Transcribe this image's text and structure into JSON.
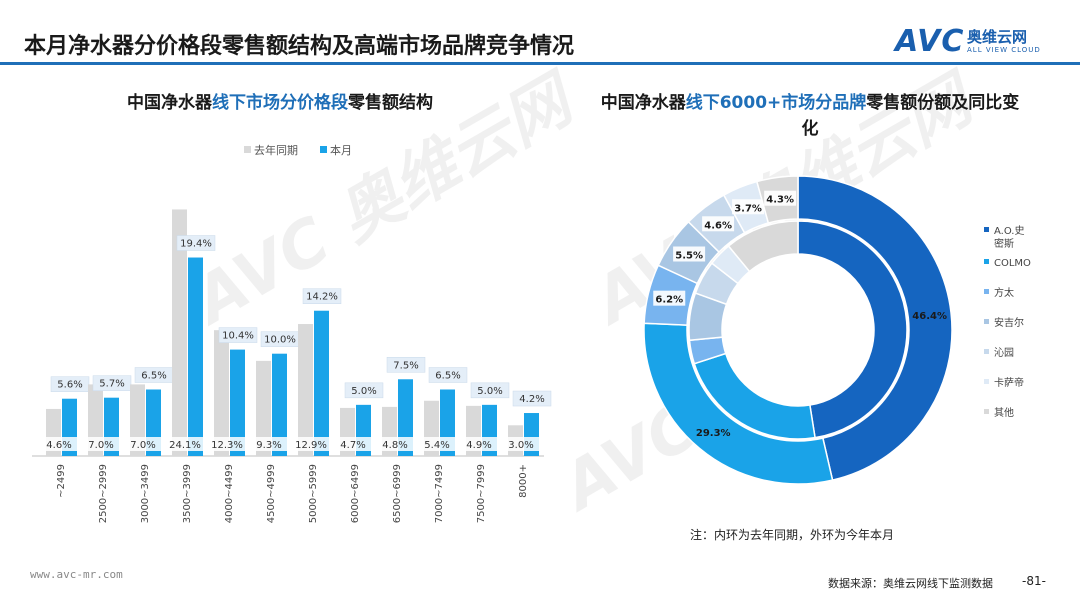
{
  "header": {
    "title": "本月净水器分价格段零售额结构及高端市场品牌竞争情况",
    "logo_mark": "AVC",
    "logo_cn": "奥维云网",
    "logo_en": "ALL VIEW CLOUD"
  },
  "left_title": {
    "pre": "中国净水器",
    "hl": "线下市场分价格段",
    "post": "零售额结构"
  },
  "right_title": {
    "pre": "中国净水器",
    "hl": "线下6000+市场分品牌",
    "post": "零售额份额及同比变化"
  },
  "colors": {
    "prior": "#d9d9d9",
    "current": "#1aa3e8",
    "title_accent": "#1f6fb8"
  },
  "chart_data": [
    {
      "type": "bar",
      "categories": [
        "~2499",
        "2500~2999",
        "3000~3499",
        "3500~3999",
        "4000~4499",
        "4500~4999",
        "5000~5999",
        "6000~6499",
        "6500~6999",
        "7000~7499",
        "7500~7999",
        "8000+"
      ],
      "series": [
        {
          "name": "去年同期",
          "values": [
            4.6,
            7.0,
            7.0,
            24.1,
            12.3,
            9.3,
            12.9,
            4.7,
            4.8,
            5.4,
            4.9,
            3.0
          ],
          "labels": [
            "4.6%",
            "7.0%",
            "7.0%",
            "24.1%",
            "12.3%",
            "9.3%",
            "12.9%",
            "4.7%",
            "4.8%",
            "5.4%",
            "4.9%",
            "3.0%"
          ]
        },
        {
          "name": "本月",
          "values": [
            5.6,
            5.7,
            6.5,
            19.4,
            10.4,
            10.0,
            14.2,
            5.0,
            7.5,
            6.5,
            5.0,
            4.2
          ],
          "labels": [
            "5.6%",
            "5.7%",
            "6.5%",
            "19.4%",
            "10.4%",
            "10.0%",
            "14.2%",
            "5.0%",
            "7.5%",
            "6.5%",
            "5.0%",
            "4.2%"
          ]
        }
      ],
      "ylim": [
        0,
        26
      ],
      "legend": "top-center",
      "grid": false
    },
    {
      "type": "pie",
      "donut": true,
      "categories": [
        "A.O.史密斯",
        "COLMO",
        "方太",
        "安吉尔",
        "沁园",
        "卡萨帝",
        "其他"
      ],
      "legend_labels": [
        "A.O.史\n密斯",
        "COLMO",
        "方太",
        "安吉尔",
        "沁园",
        "卡萨帝",
        "其他"
      ],
      "slice_colors": [
        "#1565c0",
        "#1aa3e8",
        "#78b4ef",
        "#a9c6e3",
        "#c7d9ec",
        "#dfeaf6",
        "#d9d9d9"
      ],
      "outer_values": [
        46.4,
        29.3,
        6.2,
        5.5,
        4.6,
        3.7,
        4.3
      ],
      "outer_labels": [
        "46.4%",
        "29.3%",
        "6.2%",
        "5.5%",
        "4.6%",
        "3.7%",
        "4.3%"
      ],
      "inner_values": [
        47.5,
        22.5,
        3.5,
        7.0,
        5.0,
        3.5,
        11.0
      ],
      "legend": "right"
    }
  ],
  "note": "注：内环为去年同期，外环为今年本月",
  "footer": {
    "website": "www.avc-mr.com",
    "source": "数据来源：奥维云网线下监测数据",
    "page": "-81-"
  }
}
